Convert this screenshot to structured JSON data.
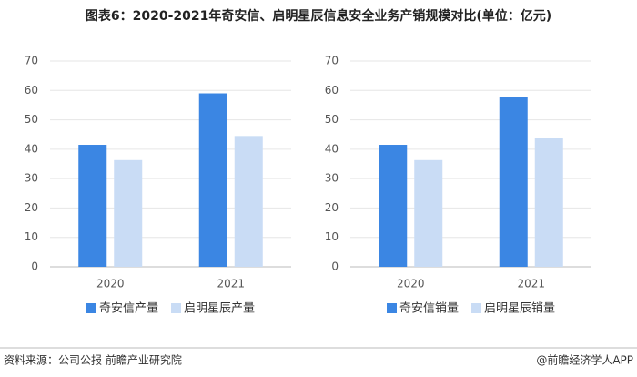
{
  "title": "图表6：2020-2021年奇安信、启明星辰信息安全业务产销规模对比(单位：亿元)",
  "source": "资料来源：公司公报 前瞻产业研究院",
  "brand": "@前瞻经济学人APP",
  "chart_data": [
    {
      "type": "bar",
      "categories": [
        "2020",
        "2021"
      ],
      "series": [
        {
          "name": "奇安信产量",
          "color": "#3b86e3",
          "values": [
            41.5,
            59
          ]
        },
        {
          "name": "启明星辰产量",
          "color": "#c9dcf5",
          "values": [
            36.3,
            44.5
          ]
        }
      ],
      "ylim": [
        0,
        70
      ],
      "yticks": [
        0,
        10,
        20,
        30,
        40,
        50,
        60,
        70
      ],
      "grid": true,
      "legend": "bottom"
    },
    {
      "type": "bar",
      "categories": [
        "2020",
        "2021"
      ],
      "series": [
        {
          "name": "奇安信销量",
          "color": "#3b86e3",
          "values": [
            41.5,
            57.8
          ]
        },
        {
          "name": "启明星辰销量",
          "color": "#c9dcf5",
          "values": [
            36.3,
            43.8
          ]
        }
      ],
      "ylim": [
        0,
        70
      ],
      "yticks": [
        0,
        10,
        20,
        30,
        40,
        50,
        60,
        70
      ],
      "grid": true,
      "legend": "bottom"
    }
  ]
}
